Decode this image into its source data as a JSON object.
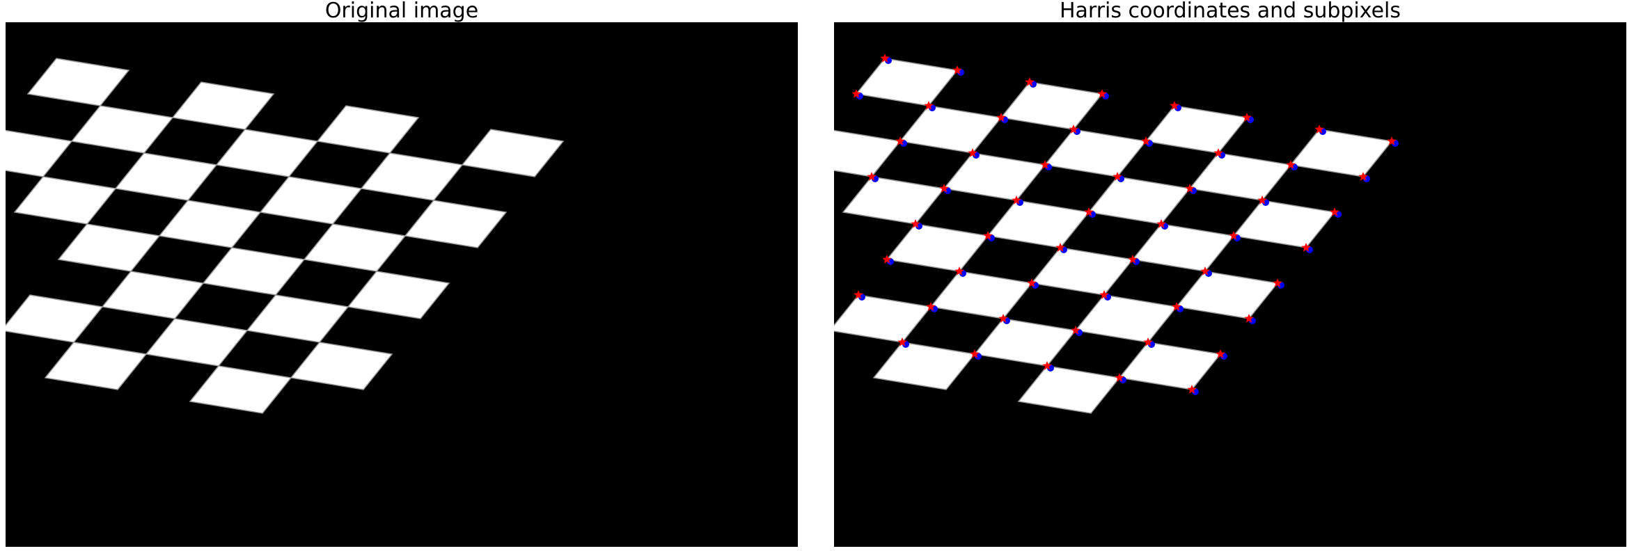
{
  "figure": {
    "left_title": "Original image",
    "right_title": "Harris coordinates and subpixels"
  },
  "image": {
    "width": 400,
    "height": 265,
    "background": "#000000",
    "tile_color": "#ffffff",
    "content": "sheared and rotated checkerboard, 4 columns x 4 rows of white tiles in the top half block, shifted rows below"
  },
  "markers": {
    "harris_color": "#ff0000",
    "harris_marker": "star",
    "subpixel_color": "#0000ff",
    "subpixel_marker": "dot"
  }
}
